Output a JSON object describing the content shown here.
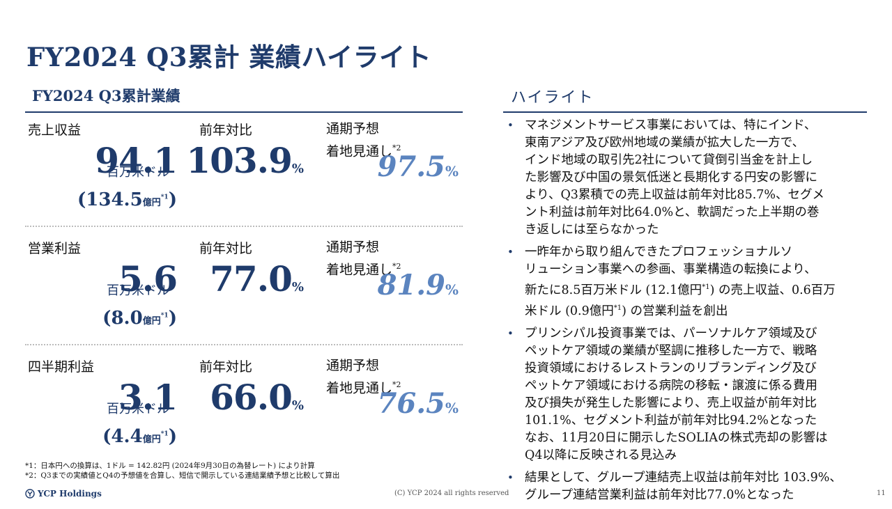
{
  "page_title": "FY2024 Q3累計 業績ハイライト",
  "left_heading": "FY2024 Q3累計業績",
  "right_heading": "ハイライト",
  "metrics": [
    {
      "label": "売上収益",
      "value": "94.1",
      "unit": "百万米ドル",
      "yen_open": "(",
      "yen_value": "134.5",
      "yen_unit": "億円",
      "yen_note": "*1",
      "yen_close": ")",
      "yoy_label": "前年対比",
      "yoy_value": "103.9",
      "yoy_unit": "%",
      "fc_label1": "通期予想",
      "fc_label2": "着地見通し",
      "fc_note": "*2",
      "fc_value": "97.5",
      "fc_unit": "%"
    },
    {
      "label": "営業利益",
      "value": "5.6",
      "unit": "百万米ドル",
      "yen_open": "(",
      "yen_value": "8.0",
      "yen_unit": "億円",
      "yen_note": "*1",
      "yen_close": ")",
      "yoy_label": "前年対比",
      "yoy_value": "77.0",
      "yoy_unit": "%",
      "fc_label1": "通期予想",
      "fc_label2": "着地見通し",
      "fc_note": "*2",
      "fc_value": "81.9",
      "fc_unit": "%"
    },
    {
      "label": "四半期利益",
      "value": "3.1",
      "unit": "百万米ドル",
      "yen_open": "(",
      "yen_value": "4.4",
      "yen_unit": "億円",
      "yen_note": "*1",
      "yen_close": ")",
      "yoy_label": "前年対比",
      "yoy_value": "66.0",
      "yoy_unit": "%",
      "fc_label1": "通期予想",
      "fc_label2": "着地見通し",
      "fc_note": "*2",
      "fc_value": "76.5",
      "fc_unit": "%"
    }
  ],
  "bullet_marker": "•",
  "bullets": {
    "b1": {
      "l1": "マネジメントサービス事業においては、特にインド、",
      "l2": "東南アジア及び欧州地域の業績が拡大した一方で、",
      "l3": "インド地域の取引先2社について貸倒引当金を計上し",
      "l4": "た影響及び中国の景気低迷と長期化する円安の影響に",
      "l5": "より、Q3累積での売上収益は前年対比85.7%、セグメ",
      "l6": "ント利益は前年対比64.0%と、軟調だった上半期の巻",
      "l7": "き返しには至らなかった"
    },
    "b2": {
      "l1": "一昨年から取り組んできたプロフェッショナルソ",
      "l2": "リューション事業への参画、事業構造の転換により、",
      "l3a": "新たに8.5百万米ドル (12.1億円",
      "l3b": ") の売上収益、0.6百万",
      "l4a": "米ドル (0.9億円",
      "l4b": ") の営業利益を創出",
      "note": "*1"
    },
    "b3": {
      "l1": "プリンシパル投資事業では、パーソナルケア領域及び",
      "l2": "ペットケア領域の業績が堅調に推移した一方で、戦略",
      "l3": "投資領域におけるレストランのリブランディング及び",
      "l4": "ペットケア領域における病院の移転・譲渡に係る費用",
      "l5": "及び損失が発生した影響により、売上収益が前年対比",
      "l6": "101.1%、セグメント利益が前年対比94.2%となった",
      "l7": "なお、11月20日に開示したSOLIAの株式売却の影響は",
      "l8": "Q4以降に反映される見込み"
    },
    "b4": {
      "l1": "結果として、グループ連結売上収益は前年対比 103.9%、",
      "l2": "グループ連結営業利益は前年対比77.0%となった"
    }
  },
  "footnotes": {
    "n1": "*1：日本円への換算は、1ドル = 142.82円 (2024年9月30日の為替レート) により計算",
    "n2": "*2：Q3までの実績値とQ4の予想値を合算し、短信で開示している連結業績予想と比較して算出"
  },
  "logo_text": "YCP Holdings",
  "copyright": "(C) YCP 2024 all rights reserved",
  "page_number": "11"
}
